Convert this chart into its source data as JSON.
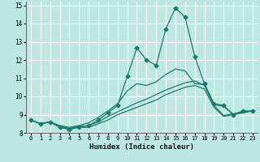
{
  "xlabel": "Humidex (Indice chaleur)",
  "xlim": [
    -0.5,
    23.5
  ],
  "ylim": [
    8,
    15.2
  ],
  "yticks": [
    8,
    9,
    10,
    11,
    12,
    13,
    14,
    15
  ],
  "xticks": [
    0,
    1,
    2,
    3,
    4,
    5,
    6,
    7,
    8,
    9,
    10,
    11,
    12,
    13,
    14,
    15,
    16,
    17,
    18,
    19,
    20,
    21,
    22,
    23
  ],
  "bg_color": "#bde8e2",
  "grid_color": "#ffffff",
  "line_color": "#1a7a6e",
  "lines": [
    [
      8.7,
      8.5,
      8.6,
      8.3,
      8.2,
      8.3,
      8.3,
      8.5,
      8.7,
      9.0,
      9.2,
      9.4,
      9.6,
      9.8,
      10.1,
      10.3,
      10.5,
      10.6,
      10.4,
      9.4,
      8.9,
      9.0,
      9.1,
      9.2
    ],
    [
      8.7,
      8.5,
      8.6,
      8.35,
      8.25,
      8.35,
      8.4,
      8.6,
      8.9,
      9.15,
      9.4,
      9.65,
      9.85,
      10.1,
      10.35,
      10.55,
      10.75,
      10.85,
      10.6,
      9.5,
      8.95,
      9.05,
      9.15,
      9.2
    ],
    [
      8.7,
      8.5,
      8.6,
      8.4,
      8.3,
      8.4,
      8.55,
      8.85,
      9.2,
      9.6,
      10.3,
      10.7,
      10.6,
      10.8,
      11.2,
      11.5,
      11.4,
      10.7,
      10.65,
      9.55,
      9.45,
      9.0,
      9.15,
      9.2
    ],
    [
      8.7,
      8.5,
      8.6,
      8.3,
      8.2,
      8.3,
      8.4,
      8.7,
      9.1,
      9.5,
      11.1,
      12.65,
      12.0,
      11.7,
      13.7,
      14.85,
      14.35,
      12.2,
      10.7,
      9.6,
      9.5,
      9.0,
      9.2,
      9.2
    ]
  ],
  "marker_line_idx": 3,
  "marker": "D",
  "markersize": 2.5
}
